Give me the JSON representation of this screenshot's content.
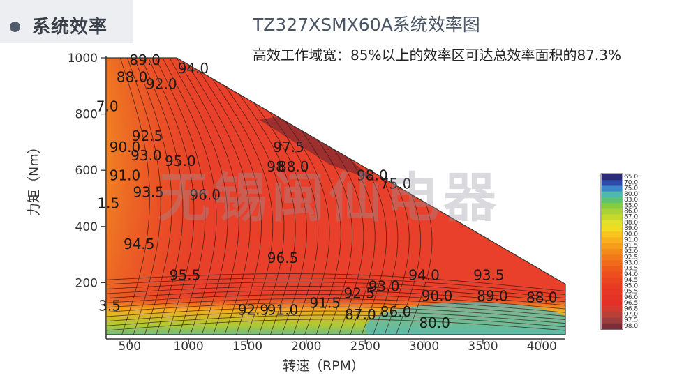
{
  "header": {
    "section_title": "系统效率"
  },
  "chart_data": {
    "type": "heatmap",
    "title": "TZ327XSMX60A系统效率图",
    "subtitle": "高效工作域宽：85%以上的效率区可达总效率面积的87.3%",
    "xlabel": "转速（RPM）",
    "ylabel": "力矩（Nm）",
    "xlim": [
      300,
      4200
    ],
    "ylim": [
      0,
      1000
    ],
    "x_ticks": [
      500,
      1000,
      1500,
      2000,
      2500,
      3000,
      3500,
      4000
    ],
    "y_ticks": [
      200,
      400,
      600,
      800,
      1000
    ],
    "operating_envelope": [
      {
        "x": 300,
        "y": 1000
      },
      {
        "x": 900,
        "y": 1000
      },
      {
        "x": 4200,
        "y": 195
      },
      {
        "x": 4200,
        "y": 15
      },
      {
        "x": 300,
        "y": 15
      }
    ],
    "contour_labels": [
      {
        "text": "89.0",
        "x": 630,
        "y": 975
      },
      {
        "text": "94.0",
        "x": 1040,
        "y": 945
      },
      {
        "text": "88.0",
        "x": 520,
        "y": 915
      },
      {
        "text": "92.0",
        "x": 770,
        "y": 890
      },
      {
        "text": "7.0",
        "x": 310,
        "y": 810
      },
      {
        "text": "92.5",
        "x": 650,
        "y": 705
      },
      {
        "text": "97.5",
        "x": 1850,
        "y": 665
      },
      {
        "text": "90.0",
        "x": 460,
        "y": 665
      },
      {
        "text": "93.0",
        "x": 640,
        "y": 635
      },
      {
        "text": "95.0",
        "x": 930,
        "y": 615
      },
      {
        "text": "98",
        "x": 1740,
        "y": 595
      },
      {
        "text": "88.0",
        "x": 1890,
        "y": 595
      },
      {
        "text": "98.0",
        "x": 2560,
        "y": 565
      },
      {
        "text": "75.0",
        "x": 2760,
        "y": 535
      },
      {
        "text": "91.0",
        "x": 460,
        "y": 565
      },
      {
        "text": "93.5",
        "x": 660,
        "y": 505
      },
      {
        "text": "96.0",
        "x": 1140,
        "y": 495
      },
      {
        "text": "1.5",
        "x": 320,
        "y": 465
      },
      {
        "text": "94.5",
        "x": 580,
        "y": 320
      },
      {
        "text": "96.5",
        "x": 1800,
        "y": 270
      },
      {
        "text": "95.5",
        "x": 970,
        "y": 210
      },
      {
        "text": "94.0",
        "x": 3000,
        "y": 210
      },
      {
        "text": "93.5",
        "x": 3550,
        "y": 210
      },
      {
        "text": "93.0",
        "x": 2660,
        "y": 170
      },
      {
        "text": "92.5",
        "x": 2450,
        "y": 145
      },
      {
        "text": "90.0",
        "x": 3110,
        "y": 135
      },
      {
        "text": "89.0",
        "x": 3580,
        "y": 135
      },
      {
        "text": "88.0",
        "x": 4000,
        "y": 130
      },
      {
        "text": "91.5",
        "x": 2160,
        "y": 110
      },
      {
        "text": "3.5",
        "x": 330,
        "y": 100
      },
      {
        "text": "92.9",
        "x": 1550,
        "y": 85
      },
      {
        "text": "91.0",
        "x": 1800,
        "y": 85
      },
      {
        "text": "87.0",
        "x": 2460,
        "y": 70
      },
      {
        "text": "86.0",
        "x": 2760,
        "y": 80
      },
      {
        "text": "80.0",
        "x": 3090,
        "y": 40
      }
    ],
    "colorbar": {
      "labels": [
        "65.0",
        "70.0",
        "75.0",
        "80.0",
        "83.0",
        "85.0",
        "86.0",
        "87.0",
        "88.0",
        "89.0",
        "90.0",
        "91.0",
        "91.5",
        "92.0",
        "92.5",
        "93.0",
        "93.5",
        "94.0",
        "94.5",
        "95.0",
        "95.5",
        "96.0",
        "96.5",
        "96.8",
        "97.0",
        "97.5",
        "98.0"
      ],
      "colors": [
        "#2a2c78",
        "#2c4aa8",
        "#3a86c8",
        "#4fb8b0",
        "#5cc46e",
        "#86cc40",
        "#a8d236",
        "#c6da2e",
        "#e2e028",
        "#f2dc22",
        "#f8c41e",
        "#f8b01c",
        "#f69e1a",
        "#f48a1a",
        "#f2781a",
        "#f06a1a",
        "#ee5a1c",
        "#ec4e1e",
        "#ea4420",
        "#e83c22",
        "#e63624",
        "#e53226",
        "#e42e28",
        "#d23a30",
        "#b84036",
        "#9c3c3c",
        "#7c2e38"
      ]
    }
  },
  "watermark": "无锡闽仙电器"
}
